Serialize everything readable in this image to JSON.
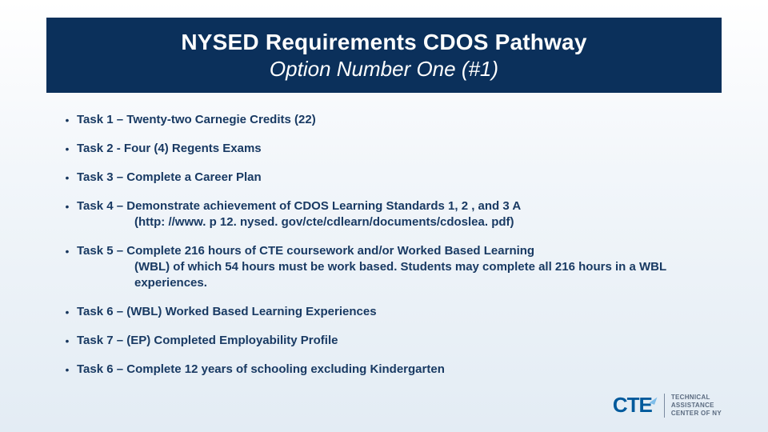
{
  "colors": {
    "title_band_bg": "#0b305b",
    "title_text": "#ffffff",
    "body_text": "#193a63",
    "bg_top": "#ffffff",
    "bg_bottom": "#e3ecf4",
    "logo_primary": "#005a9c",
    "logo_accent": "#7fbde9",
    "logo_sub": "#5b6b80"
  },
  "typography": {
    "title_line1_size": 28,
    "title_line2_size": 26,
    "body_size": 15,
    "body_weight": "bold",
    "font_family": "Arial"
  },
  "title": {
    "line1": "NYSED Requirements CDOS Pathway",
    "line2": "Option Number One (#1)"
  },
  "bullets": [
    {
      "main": "Task 1 – Twenty-two Carnegie Credits (22)",
      "sub": ""
    },
    {
      "main": "Task 2 -  Four (4) Regents Exams",
      "sub": ""
    },
    {
      "main": "Task 3 – Complete a Career Plan",
      "sub": ""
    },
    {
      "main": "Task 4 – Demonstrate achievement of CDOS Learning Standards 1, 2 , and 3 A",
      "sub": "(http: //www. p 12. nysed. gov/cte/cdlearn/documents/cdoslea. pdf)"
    },
    {
      "main": "Task 5 – Complete 216 hours of CTE coursework and/or Worked Based Learning",
      "sub": "(WBL) of which 54 hours must be work based. Students may complete all 216 hours in a WBL experiences."
    },
    {
      "main": "Task 6 – (WBL) Worked Based Learning Experiences",
      "sub": ""
    },
    {
      "main": "Task 7 – (EP) Completed Employability Profile",
      "sub": ""
    },
    {
      "main": "Task 6 – Complete 12 years of schooling excluding Kindergarten",
      "sub": ""
    }
  ],
  "logo": {
    "main": "CTE",
    "sub_line1": "TECHNICAL",
    "sub_line2": "ASSISTANCE",
    "sub_line3": "CENTER OF NY"
  }
}
